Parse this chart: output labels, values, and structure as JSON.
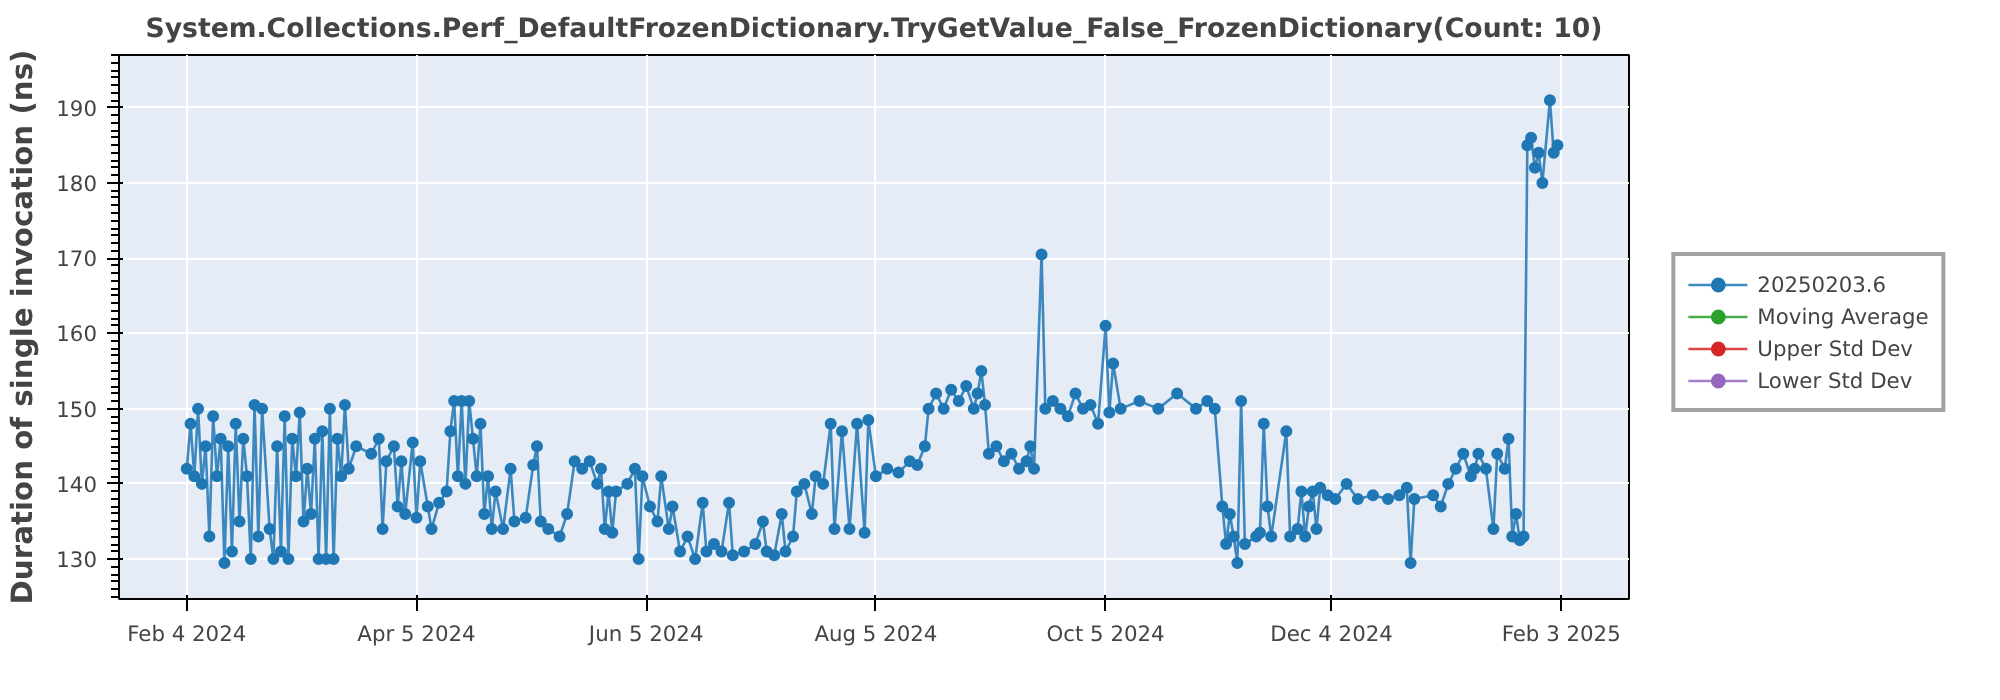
{
  "chart_data": {
    "type": "line",
    "title": "System.Collections.Perf_DefaultFrozenDictionary.TryGetValue_False_FrozenDictionary(Count: 10)",
    "ylabel": "Duration of single invocation (ns)",
    "xlim": [
      "2024-01-17",
      "2025-02-21"
    ],
    "ylim": [
      124.7,
      197
    ],
    "xticks": [
      {
        "value": "2024-02-04",
        "label": "Feb 4 2024"
      },
      {
        "value": "2024-04-05",
        "label": "Apr 5 2024"
      },
      {
        "value": "2024-06-05",
        "label": "Jun 5 2024"
      },
      {
        "value": "2024-08-05",
        "label": "Aug 5 2024"
      },
      {
        "value": "2024-10-05",
        "label": "Oct 5 2024"
      },
      {
        "value": "2024-12-04",
        "label": "Dec 4 2024"
      },
      {
        "value": "2025-02-03",
        "label": "Feb 3 2025"
      }
    ],
    "yticks": [
      130,
      140,
      150,
      160,
      170,
      180,
      190
    ],
    "grid": true,
    "legend": "right",
    "marker": "circle",
    "line_style": "solid",
    "series": [
      {
        "name": "20250203.6",
        "color": "#1f77b4",
        "x": [
          "2024-02-04",
          "2024-02-05",
          "2024-02-06",
          "2024-02-07",
          "2024-02-08",
          "2024-02-09",
          "2024-02-10",
          "2024-02-11",
          "2024-02-12",
          "2024-02-13",
          "2024-02-14",
          "2024-02-15",
          "2024-02-16",
          "2024-02-17",
          "2024-02-18",
          "2024-02-19",
          "2024-02-20",
          "2024-02-21",
          "2024-02-22",
          "2024-02-23",
          "2024-02-24",
          "2024-02-26",
          "2024-02-27",
          "2024-02-28",
          "2024-02-29",
          "2024-03-01",
          "2024-03-02",
          "2024-03-03",
          "2024-03-04",
          "2024-03-05",
          "2024-03-06",
          "2024-03-07",
          "2024-03-08",
          "2024-03-09",
          "2024-03-10",
          "2024-03-11",
          "2024-03-12",
          "2024-03-13",
          "2024-03-14",
          "2024-03-15",
          "2024-03-16",
          "2024-03-17",
          "2024-03-18",
          "2024-03-20",
          "2024-03-24",
          "2024-03-26",
          "2024-03-27",
          "2024-03-28",
          "2024-03-30",
          "2024-03-31",
          "2024-04-01",
          "2024-04-02",
          "2024-04-04",
          "2024-04-05",
          "2024-04-06",
          "2024-04-08",
          "2024-04-09",
          "2024-04-11",
          "2024-04-13",
          "2024-04-14",
          "2024-04-15",
          "2024-04-16",
          "2024-04-17",
          "2024-04-18",
          "2024-04-19",
          "2024-04-20",
          "2024-04-21",
          "2024-04-22",
          "2024-04-23",
          "2024-04-24",
          "2024-04-25",
          "2024-04-26",
          "2024-04-28",
          "2024-04-30",
          "2024-05-01",
          "2024-05-04",
          "2024-05-06",
          "2024-05-07",
          "2024-05-08",
          "2024-05-10",
          "2024-05-13",
          "2024-05-15",
          "2024-05-17",
          "2024-05-19",
          "2024-05-21",
          "2024-05-23",
          "2024-05-24",
          "2024-05-25",
          "2024-05-26",
          "2024-05-27",
          "2024-05-28",
          "2024-05-31",
          "2024-06-02",
          "2024-06-03",
          "2024-06-04",
          "2024-06-06",
          "2024-06-08",
          "2024-06-09",
          "2024-06-11",
          "2024-06-12",
          "2024-06-14",
          "2024-06-16",
          "2024-06-18",
          "2024-06-20",
          "2024-06-21",
          "2024-06-23",
          "2024-06-25",
          "2024-06-27",
          "2024-06-28",
          "2024-07-01",
          "2024-07-04",
          "2024-07-06",
          "2024-07-07",
          "2024-07-09",
          "2024-07-11",
          "2024-07-12",
          "2024-07-14",
          "2024-07-15",
          "2024-07-17",
          "2024-07-19",
          "2024-07-20",
          "2024-07-22",
          "2024-07-24",
          "2024-07-25",
          "2024-07-27",
          "2024-07-29",
          "2024-07-31",
          "2024-08-02",
          "2024-08-03",
          "2024-08-05",
          "2024-08-08",
          "2024-08-11",
          "2024-08-14",
          "2024-08-16",
          "2024-08-18",
          "2024-08-19",
          "2024-08-21",
          "2024-08-23",
          "2024-08-25",
          "2024-08-27",
          "2024-08-29",
          "2024-08-31",
          "2024-09-01",
          "2024-09-02",
          "2024-09-03",
          "2024-09-04",
          "2024-09-06",
          "2024-09-08",
          "2024-09-10",
          "2024-09-12",
          "2024-09-14",
          "2024-09-15",
          "2024-09-16",
          "2024-09-18",
          "2024-09-19",
          "2024-09-21",
          "2024-09-23",
          "2024-09-25",
          "2024-09-27",
          "2024-09-29",
          "2024-10-01",
          "2024-10-03",
          "2024-10-05",
          "2024-10-06",
          "2024-10-07",
          "2024-10-09",
          "2024-10-14",
          "2024-10-19",
          "2024-10-24",
          "2024-10-29",
          "2024-11-01",
          "2024-11-03",
          "2024-11-05",
          "2024-11-06",
          "2024-11-07",
          "2024-11-08",
          "2024-11-09",
          "2024-11-10",
          "2024-11-11",
          "2024-11-14",
          "2024-11-15",
          "2024-11-16",
          "2024-11-17",
          "2024-11-18",
          "2024-11-22",
          "2024-11-23",
          "2024-11-25",
          "2024-11-26",
          "2024-11-27",
          "2024-11-28",
          "2024-11-29",
          "2024-11-30",
          "2024-12-01",
          "2024-12-03",
          "2024-12-05",
          "2024-12-08",
          "2024-12-11",
          "2024-12-15",
          "2024-12-19",
          "2024-12-22",
          "2024-12-24",
          "2024-12-25",
          "2024-12-26",
          "2024-12-31",
          "2025-01-02",
          "2025-01-04",
          "2025-01-06",
          "2025-01-08",
          "2025-01-10",
          "2025-01-11",
          "2025-01-12",
          "2025-01-14",
          "2025-01-16",
          "2025-01-17",
          "2025-01-19",
          "2025-01-20",
          "2025-01-21",
          "2025-01-22",
          "2025-01-23",
          "2025-01-24",
          "2025-01-25",
          "2025-01-26",
          "2025-01-27",
          "2025-01-28",
          "2025-01-29",
          "2025-01-31",
          "2025-02-01",
          "2025-02-02"
        ],
        "values": [
          142,
          148,
          141,
          150,
          140,
          145,
          133,
          149,
          141,
          146,
          129.5,
          145,
          131,
          148,
          135,
          146,
          141,
          130,
          150.5,
          133,
          150,
          134,
          130,
          145,
          131,
          149,
          130,
          146,
          141,
          149.5,
          135,
          142,
          136,
          146,
          130,
          147,
          130,
          150,
          130,
          146,
          141,
          150.5,
          142,
          145,
          144,
          146,
          134,
          143,
          145,
          137,
          143,
          136,
          145.5,
          135.5,
          143,
          137,
          134,
          137.5,
          139,
          147,
          151,
          141,
          151,
          140,
          151,
          146,
          141,
          148,
          136,
          141,
          134,
          139,
          134,
          142,
          135,
          135.5,
          142.5,
          145,
          135,
          134,
          133,
          136,
          143,
          142,
          143,
          140,
          142,
          134,
          139,
          133.5,
          139,
          140,
          142,
          130,
          141,
          137,
          135,
          141,
          134,
          137,
          131,
          133,
          130,
          137.5,
          131,
          132,
          131,
          137.5,
          130.5,
          131,
          132,
          135,
          131,
          130.5,
          136,
          131,
          133,
          139,
          140,
          136,
          141,
          140,
          148,
          134,
          147,
          134,
          148,
          133.5,
          148.5,
          141,
          142,
          141.5,
          143,
          142.5,
          145,
          150,
          152,
          150,
          152.5,
          151,
          153,
          150,
          152,
          155,
          150.5,
          144,
          145,
          143,
          144,
          142,
          143,
          145,
          142,
          170.5,
          150,
          151,
          150,
          149,
          152,
          150,
          150.5,
          148,
          161,
          149.5,
          156,
          150,
          151,
          150,
          152,
          150,
          151,
          150,
          137,
          132,
          136,
          133,
          129.5,
          151,
          132,
          133,
          133.5,
          148,
          137,
          133,
          147,
          133,
          134,
          139,
          133,
          137,
          139,
          134,
          139.5,
          138.5,
          138,
          140,
          138,
          138.5,
          138,
          138.5,
          139.5,
          129.5,
          138,
          138.5,
          137,
          140,
          142,
          144,
          141,
          142,
          144,
          142,
          134,
          144,
          142,
          146,
          133,
          136,
          132.5,
          133,
          185,
          186,
          182,
          184,
          180,
          191,
          184,
          185
        ]
      },
      {
        "name": "Moving Average",
        "color": "#2ca02c"
      },
      {
        "name": "Upper Std Dev",
        "color": "#d62728"
      },
      {
        "name": "Lower Std Dev",
        "color": "#9467bd"
      }
    ]
  }
}
